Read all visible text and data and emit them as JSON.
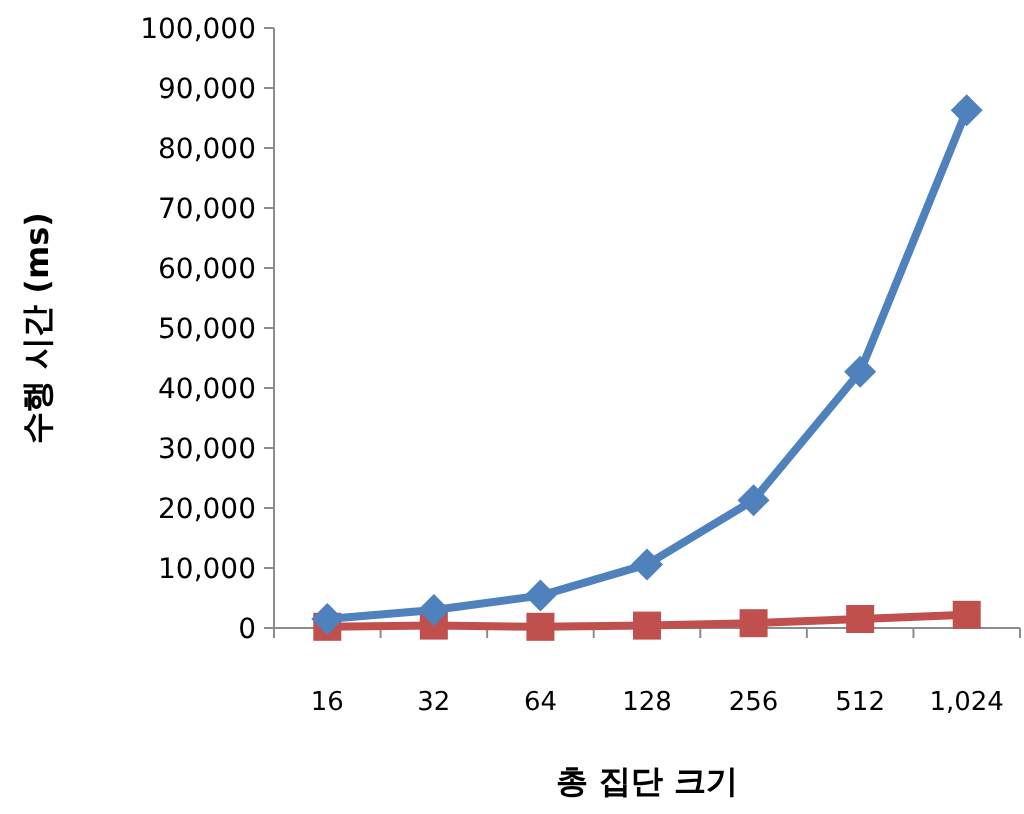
{
  "chart_data": {
    "type": "line",
    "xlabel": "총 집단 크기",
    "ylabel": "수행 시간 (ms)",
    "categories": [
      "16",
      "32",
      "64",
      "128",
      "256",
      "512",
      "1,024"
    ],
    "series": [
      {
        "color": "#4f81bd",
        "marker": "diamond",
        "values": [
          1500,
          3000,
          5400,
          10600,
          21300,
          42700,
          86300
        ]
      },
      {
        "color": "#c0504d",
        "marker": "square",
        "values": [
          200,
          400,
          200,
          400,
          800,
          1500,
          2200
        ]
      }
    ],
    "ylim": [
      0,
      100000
    ],
    "yticks": [
      {
        "value": 0,
        "label": "0"
      },
      {
        "value": 10000,
        "label": "10,000"
      },
      {
        "value": 20000,
        "label": "20,000"
      },
      {
        "value": 30000,
        "label": "30,000"
      },
      {
        "value": 40000,
        "label": "40,000"
      },
      {
        "value": 50000,
        "label": "50,000"
      },
      {
        "value": 60000,
        "label": "60,000"
      },
      {
        "value": 70000,
        "label": "70,000"
      },
      {
        "value": 80000,
        "label": "80,000"
      },
      {
        "value": 90000,
        "label": "90,000"
      },
      {
        "value": 100000,
        "label": "100,000"
      }
    ],
    "grid": false
  }
}
